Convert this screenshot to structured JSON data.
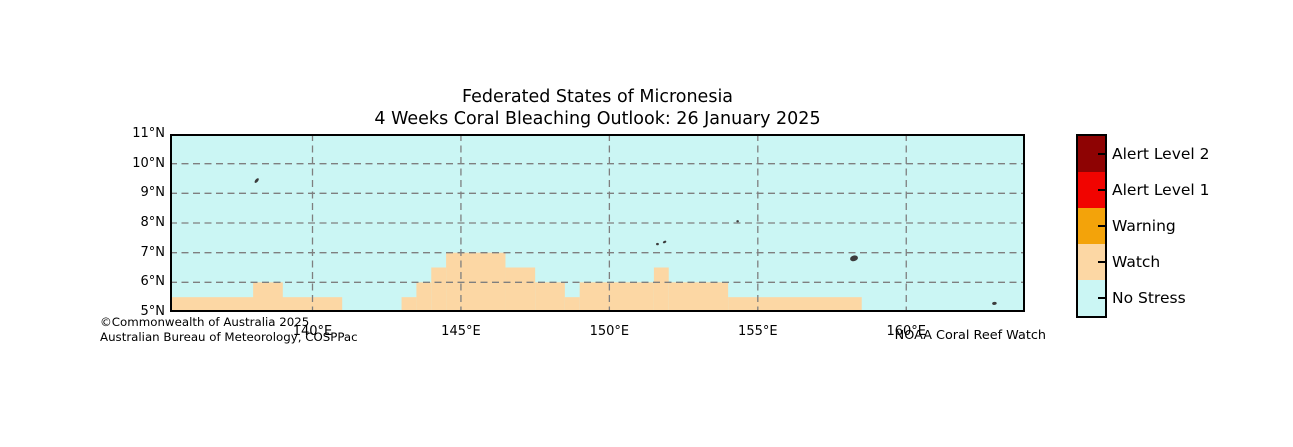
{
  "title": {
    "line1": "Federated States of Micronesia",
    "line2": "4 Weeks Coral Bleaching Outlook: 26 January 2025"
  },
  "credits": {
    "left_line1": "©Commonwealth of Australia 2025",
    "left_line2": "Australian Bureau of Meteorology, COSPPac",
    "right": "NOAA Coral Reef Watch"
  },
  "legend": {
    "items": [
      {
        "label": "Alert Level 2",
        "color": "#8e0303"
      },
      {
        "label": "Alert Level 1",
        "color": "#f10400"
      },
      {
        "label": "Warning",
        "color": "#f3a30a"
      },
      {
        "label": "Watch",
        "color": "#fcd7a4"
      },
      {
        "label": "No Stress",
        "color": "#cbf6f4"
      }
    ]
  },
  "chart_data": {
    "type": "heatmap",
    "title": "Federated States of Micronesia",
    "subtitle": "4 Weeks Coral Bleaching Outlook: 26 January 2025",
    "xlim": [
      135.2,
      164.0
    ],
    "ylim": [
      5,
      11
    ],
    "grid": "dashed",
    "x_ticks": [
      {
        "value": 140,
        "label": "140°E"
      },
      {
        "value": 145,
        "label": "145°E"
      },
      {
        "value": 150,
        "label": "150°E"
      },
      {
        "value": 155,
        "label": "155°E"
      },
      {
        "value": 160,
        "label": "160°E"
      }
    ],
    "y_ticks": [
      {
        "value": 11,
        "label": "11°N"
      },
      {
        "value": 10,
        "label": "10°N"
      },
      {
        "value": 9,
        "label": "9°N"
      },
      {
        "value": 8,
        "label": "8°N"
      },
      {
        "value": 7,
        "label": "7°N"
      },
      {
        "value": 6,
        "label": "6°N"
      },
      {
        "value": 5,
        "label": "5°N"
      }
    ],
    "background_level": "No Stress",
    "watch_cells": [
      {
        "lon1": 135.2,
        "lon2": 141.0,
        "lat1": 5.0,
        "lat2": 5.5
      },
      {
        "lon1": 138.0,
        "lon2": 139.0,
        "lat1": 5.0,
        "lat2": 6.0
      },
      {
        "lon1": 143.0,
        "lon2": 143.5,
        "lat1": 5.0,
        "lat2": 5.5
      },
      {
        "lon1": 143.5,
        "lon2": 144.0,
        "lat1": 5.0,
        "lat2": 6.0
      },
      {
        "lon1": 144.0,
        "lon2": 144.5,
        "lat1": 5.0,
        "lat2": 6.5
      },
      {
        "lon1": 144.5,
        "lon2": 146.5,
        "lat1": 5.0,
        "lat2": 7.0
      },
      {
        "lon1": 146.5,
        "lon2": 147.5,
        "lat1": 5.0,
        "lat2": 6.5
      },
      {
        "lon1": 147.5,
        "lon2": 148.5,
        "lat1": 5.0,
        "lat2": 6.0
      },
      {
        "lon1": 148.5,
        "lon2": 149.0,
        "lat1": 5.0,
        "lat2": 5.5
      },
      {
        "lon1": 149.0,
        "lon2": 151.5,
        "lat1": 5.0,
        "lat2": 6.0
      },
      {
        "lon1": 151.5,
        "lon2": 152.0,
        "lat1": 5.0,
        "lat2": 6.5
      },
      {
        "lon1": 152.0,
        "lon2": 154.0,
        "lat1": 5.0,
        "lat2": 6.0
      },
      {
        "lon1": 154.0,
        "lon2": 158.5,
        "lat1": 5.0,
        "lat2": 5.5
      }
    ],
    "islands": [
      {
        "lon": 138.12,
        "lat": 9.43,
        "rx": 2.8,
        "ry": 1.4,
        "rot": -50
      },
      {
        "lon": 151.62,
        "lat": 7.29,
        "rx": 1.4,
        "ry": 1.2,
        "rot": 0
      },
      {
        "lon": 151.86,
        "lat": 7.36,
        "rx": 1.8,
        "ry": 1.1,
        "rot": -25
      },
      {
        "lon": 154.32,
        "lat": 8.06,
        "rx": 1.3,
        "ry": 1.1,
        "rot": 0
      },
      {
        "lon": 158.24,
        "lat": 6.81,
        "rx": 4.0,
        "ry": 2.8,
        "rot": -15
      },
      {
        "lon": 162.97,
        "lat": 5.29,
        "rx": 2.3,
        "ry": 1.5,
        "rot": -10
      }
    ],
    "colors": {
      "no_stress": "#cbf6f4",
      "watch": "#fcd7a4",
      "warning": "#f3a30a",
      "alert_level_1": "#f10400",
      "alert_level_2": "#8e0303",
      "grid": "#7f7f7f",
      "island": "#3c3c3c",
      "frame": "#000000"
    },
    "legend_position": "right"
  }
}
